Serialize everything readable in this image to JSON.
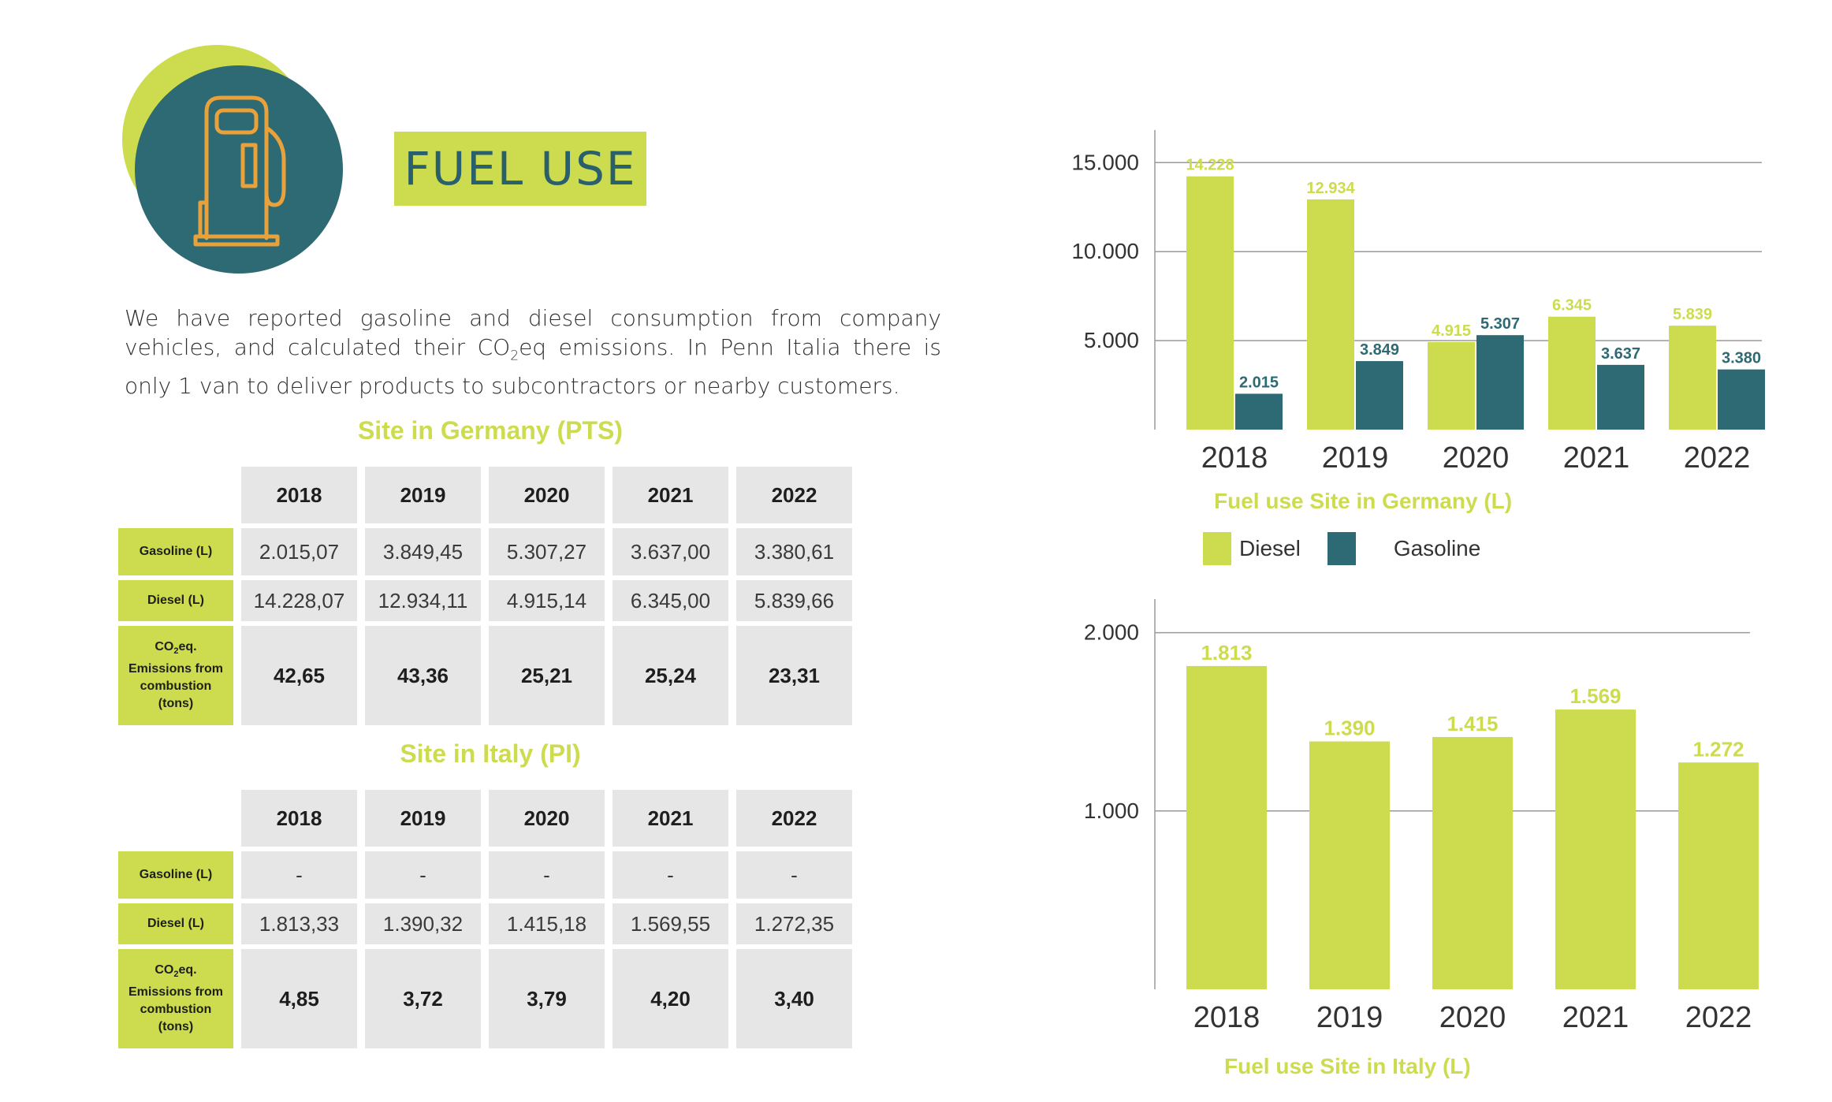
{
  "header": {
    "title": "FUEL USE",
    "icon": "fuel-pump-icon"
  },
  "intro": {
    "part1": "We have reported gasoline and diesel consumption from company vehicles, and calculated their CO",
    "sub": "2",
    "part2": "eq emissions. In Penn Italia there is only 1 van to deliver products to subcontractors or nearby customers."
  },
  "colors": {
    "diesel": "#cddc4e",
    "gasoline": "#2e6a73",
    "accent": "#cddc4e",
    "dark": "#2a5f6c",
    "pump": "#e9a23b"
  },
  "germany_table": {
    "title": "Site in Germany (PTS)",
    "years": [
      "2018",
      "2019",
      "2020",
      "2021",
      "2022"
    ],
    "rows": [
      {
        "label": "Gasoline (L)",
        "values": [
          "2.015,07",
          "3.849,45",
          "5.307,27",
          "3.637,00",
          "3.380,61"
        ]
      },
      {
        "label": "Diesel (L)",
        "values": [
          "14.228,07",
          "12.934,11",
          "4.915,14",
          "6.345,00",
          "5.839,66"
        ]
      },
      {
        "label_lines": [
          "CO2eq.",
          "Emissions from",
          "combustion",
          "(tons)"
        ],
        "values": [
          "42,65",
          "43,36",
          "25,21",
          "25,24",
          "23,31"
        ]
      }
    ]
  },
  "italy_table": {
    "title": "Site in Italy (PI)",
    "years": [
      "2018",
      "2019",
      "2020",
      "2021",
      "2022"
    ],
    "rows": [
      {
        "label": "Gasoline (L)",
        "values": [
          "-",
          "-",
          "-",
          "-",
          "-"
        ]
      },
      {
        "label": "Diesel (L)",
        "values": [
          "1.813,33",
          "1.390,32",
          "1.415,18",
          "1.569,55",
          "1.272,35"
        ]
      },
      {
        "label_lines": [
          "CO2eq.",
          "Emissions from",
          "combustion",
          "(tons)"
        ],
        "values": [
          "4,85",
          "3,72",
          "3,79",
          "4,20",
          "3,40"
        ]
      }
    ]
  },
  "chart_data": [
    {
      "type": "bar",
      "title": "Fuel use Site in Germany (L)",
      "categories": [
        "2018",
        "2019",
        "2020",
        "2021",
        "2022"
      ],
      "series": [
        {
          "name": "Diesel",
          "values": [
            14228,
            12934,
            4915,
            6345,
            5839
          ],
          "labels": [
            "14.228",
            "12.934",
            "4.915",
            "6.345",
            "5.839"
          ]
        },
        {
          "name": "Gasoline",
          "values": [
            2015,
            3849,
            5307,
            3637,
            3380
          ],
          "labels": [
            "2.015",
            "3.849",
            "5.307",
            "3.637",
            "3.380"
          ]
        }
      ],
      "yticks": [
        "5.000",
        "10.000",
        "15.000"
      ],
      "ytick_values": [
        5000,
        10000,
        15000
      ],
      "ylim": [
        0,
        15500
      ],
      "grid": true,
      "legend": "bottom"
    },
    {
      "type": "bar",
      "title": "Fuel use Site in Italy (L)",
      "categories": [
        "2018",
        "2019",
        "2020",
        "2021",
        "2022"
      ],
      "series": [
        {
          "values": [
            1813,
            1390,
            1415,
            1569,
            1272
          ],
          "labels": [
            "1.813",
            "1.390",
            "1.415",
            "1.569",
            "1.272"
          ]
        }
      ],
      "yticks": [
        "1.000",
        "2.000"
      ],
      "ytick_values": [
        1000,
        2000
      ],
      "ylim": [
        0,
        2100
      ],
      "grid": true
    }
  ]
}
